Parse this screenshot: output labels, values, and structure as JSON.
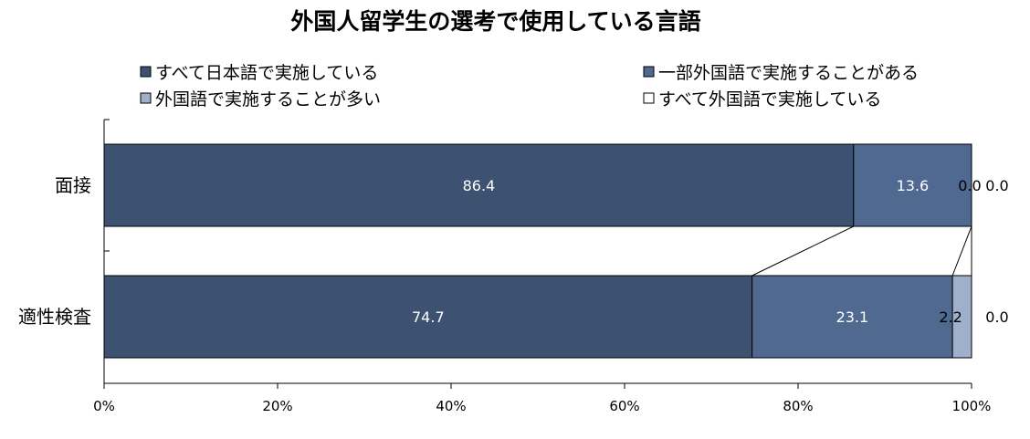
{
  "chart_data": {
    "type": "bar",
    "orientation": "horizontal",
    "stacked": true,
    "percent_stacked": true,
    "title": "外国人留学生の選考で使用している言語",
    "categories": [
      "面接",
      "適性検査"
    ],
    "series": [
      {
        "name": "すべて日本語で実施している",
        "values": [
          86.4,
          74.7
        ],
        "color": "#3d5270"
      },
      {
        "name": "一部外国語で実施することがある",
        "values": [
          13.6,
          23.1
        ],
        "color": "#4f6991"
      },
      {
        "name": "外国語で実施することが多い",
        "values": [
          0.0,
          2.2
        ],
        "color": "#9fb0cc"
      },
      {
        "name": "すべて外国語で実施している",
        "values": [
          0.0,
          0.0
        ],
        "color": "#ffffff"
      }
    ],
    "data_labels": [
      [
        "86.4",
        "74.7"
      ],
      [
        "13.6",
        "23.1"
      ],
      [
        "0.0",
        "2.2"
      ],
      [
        "0.0",
        "0.0"
      ]
    ],
    "x_ticks": [
      "0%",
      "20%",
      "40%",
      "60%",
      "80%",
      "100%"
    ],
    "xlim": [
      0,
      100
    ],
    "legend_position": "top",
    "series_lines": true,
    "grid": false
  }
}
